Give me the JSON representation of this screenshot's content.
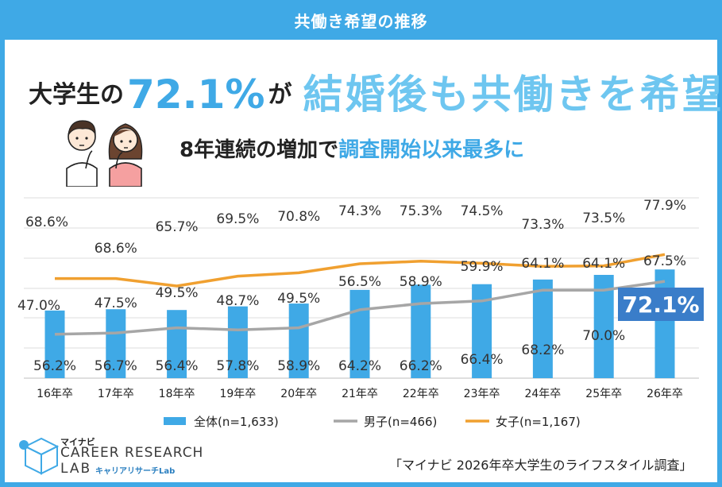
{
  "header": {
    "title": "共働き希望の推移"
  },
  "headline": {
    "prefix": "大学生の",
    "percent": "72.1%",
    "particle": "が",
    "main": "結婚後も共働きを希望"
  },
  "subheadline": {
    "text_a": "8年連続の増加で",
    "text_b": "調査開始以来最多に"
  },
  "logo": {
    "small": "マイナビ",
    "main": "CAREER RESEARCH",
    "lab": "LAB",
    "kana": "キャリアリサーチLab"
  },
  "source": "「マイナビ 2026年卒大学生のライフスタイル調査」",
  "colors": {
    "accent": "#3fa9e6",
    "bar": "#3fa9e6",
    "male": "#a6a6a6",
    "female": "#f0a030",
    "highlight_box": "#3a7dc9"
  },
  "chart_data": {
    "type": "bar",
    "categories": [
      "16年卒",
      "17年卒",
      "18年卒",
      "19年卒",
      "20年卒",
      "21年卒",
      "22年卒",
      "23年卒",
      "24年卒",
      "25年卒",
      "26年卒"
    ],
    "ylim": [
      0,
      100
    ],
    "series": [
      {
        "name": "全体(n=1,633)",
        "type": "bar",
        "values": [
          56.2,
          56.7,
          56.4,
          57.8,
          58.9,
          64.2,
          66.2,
          66.4,
          68.2,
          70.0,
          72.1
        ],
        "labels": [
          "56.2%",
          "56.7%",
          "56.4%",
          "57.8%",
          "58.9%",
          "64.2%",
          "66.2%",
          "66.4%",
          "68.2%",
          "70.0%",
          "72.1%"
        ]
      },
      {
        "name": "男子(n=466)",
        "type": "line",
        "values": [
          47.0,
          47.5,
          49.5,
          48.7,
          49.5,
          56.5,
          58.9,
          59.9,
          64.1,
          64.1,
          67.5
        ],
        "labels": [
          "47.0%",
          "47.5%",
          "49.5%",
          "48.7%",
          "49.5%",
          "56.5%",
          "58.9%",
          "59.9%",
          "64.1%",
          "64.1%",
          "67.5%"
        ]
      },
      {
        "name": "女子(n=1,167)",
        "type": "line",
        "values": [
          68.6,
          68.6,
          65.7,
          69.5,
          70.8,
          74.3,
          75.3,
          74.5,
          73.3,
          73.5,
          77.9
        ],
        "labels": [
          "68.6%",
          "68.6%",
          "65.7%",
          "69.5%",
          "70.8%",
          "74.3%",
          "75.3%",
          "74.5%",
          "73.3%",
          "73.5%",
          "77.9%"
        ]
      }
    ]
  }
}
